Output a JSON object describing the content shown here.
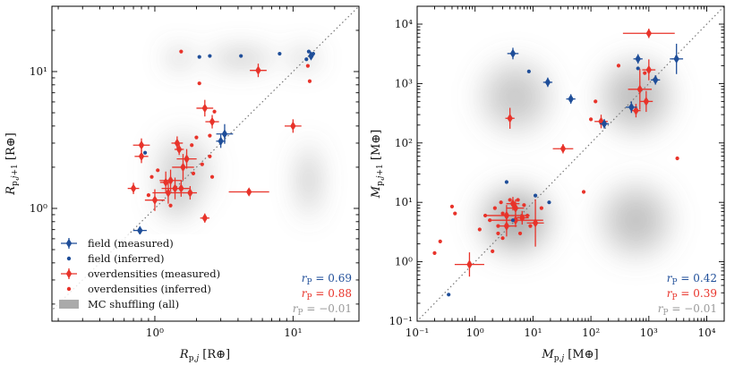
{
  "colors": {
    "field": "#1f4e99",
    "overdensity": "#e8332a",
    "mc": "#aaaaaa",
    "mc_text": "#999999",
    "diagonal": "#777777"
  },
  "chart_data": [
    {
      "type": "scatter",
      "id": "radius",
      "xscale": "log",
      "yscale": "log",
      "xlim": [
        0.18,
        30
      ],
      "ylim": [
        0.15,
        30
      ],
      "xlabel": "R_{p,j} [R⊕]",
      "ylabel": "R_{p,j+1} [R⊕]",
      "xticks": [
        {
          "v": 1,
          "label": "10⁰"
        },
        {
          "v": 10,
          "label": "10¹"
        }
      ],
      "yticks": [
        {
          "v": 1,
          "label": "10⁰"
        },
        {
          "v": 10,
          "label": "10¹"
        }
      ],
      "one_to_one_line": true,
      "mc_density_blobs": [
        {
          "x": 1.5,
          "y": 12.5,
          "sx": 1.25,
          "sy": 1.2,
          "w": 0.5
        },
        {
          "x": 4.2,
          "y": 12.5,
          "sx": 1.9,
          "sy": 1.2,
          "w": 0.45
        },
        {
          "x": 12,
          "y": 12.5,
          "sx": 1.3,
          "sy": 1.2,
          "w": 0.45
        },
        {
          "x": 1.6,
          "y": 1.9,
          "sx": 1.7,
          "sy": 2.0,
          "w": 0.35
        },
        {
          "x": 13,
          "y": 1.6,
          "sx": 1.25,
          "sy": 2.0,
          "w": 0.4
        },
        {
          "x": 1.4,
          "y": 1.1,
          "sx": 1.4,
          "sy": 1.4,
          "w": 0.3
        }
      ],
      "field_measured": [
        {
          "x": 3.2,
          "y": 3.5,
          "xerr": 1.15,
          "yerr": 1.18
        },
        {
          "x": 3.0,
          "y": 3.1,
          "xerr": 1.08,
          "yerr": 1.12
        },
        {
          "x": 0.78,
          "y": 0.69,
          "xerr": 1.12,
          "yerr": 1.02
        },
        {
          "x": 13.5,
          "y": 13.0,
          "xerr": 1.03,
          "yerr": 1.03
        }
      ],
      "field_inferred": [
        {
          "x": 2.1,
          "y": 12.8
        },
        {
          "x": 2.5,
          "y": 13.0
        },
        {
          "x": 4.2,
          "y": 13.0
        },
        {
          "x": 8.0,
          "y": 13.5
        },
        {
          "x": 13.0,
          "y": 14.0
        },
        {
          "x": 14.0,
          "y": 13.5
        },
        {
          "x": 12.5,
          "y": 12.3
        },
        {
          "x": 0.85,
          "y": 2.55
        }
      ],
      "over_measured": [
        {
          "x": 5.6,
          "y": 10.2,
          "xerr": 1.15,
          "yerr": 1.12
        },
        {
          "x": 2.3,
          "y": 5.4,
          "xerr": 1.15,
          "yerr": 1.15
        },
        {
          "x": 2.6,
          "y": 4.3,
          "xerr": 1.12,
          "yerr": 1.12
        },
        {
          "x": 10.0,
          "y": 4.0,
          "xerr": 1.15,
          "yerr": 1.12
        },
        {
          "x": 0.8,
          "y": 2.9,
          "xerr": 1.15,
          "yerr": 1.12
        },
        {
          "x": 0.8,
          "y": 2.4,
          "xerr": 1.12,
          "yerr": 1.12
        },
        {
          "x": 1.7,
          "y": 2.3,
          "xerr": 1.18,
          "yerr": 1.18
        },
        {
          "x": 1.45,
          "y": 3.0,
          "xerr": 1.1,
          "yerr": 1.12
        },
        {
          "x": 1.6,
          "y": 2.0,
          "xerr": 1.2,
          "yerr": 1.25
        },
        {
          "x": 1.3,
          "y": 1.6,
          "xerr": 1.2,
          "yerr": 1.2
        },
        {
          "x": 1.4,
          "y": 1.4,
          "xerr": 1.25,
          "yerr": 1.2
        },
        {
          "x": 1.25,
          "y": 1.3,
          "xerr": 1.3,
          "yerr": 1.2
        },
        {
          "x": 1.55,
          "y": 1.4,
          "xerr": 1.15,
          "yerr": 1.15
        },
        {
          "x": 1.0,
          "y": 1.15,
          "xerr": 1.18,
          "yerr": 1.2
        },
        {
          "x": 1.8,
          "y": 1.3,
          "xerr": 1.12,
          "yerr": 1.12
        },
        {
          "x": 1.2,
          "y": 1.55,
          "xerr": 1.1,
          "yerr": 1.2
        },
        {
          "x": 0.7,
          "y": 1.4,
          "xerr": 1.1,
          "yerr": 1.1
        },
        {
          "x": 2.3,
          "y": 0.85,
          "xerr": 1.08,
          "yerr": 1.08
        },
        {
          "x": 4.8,
          "y": 1.32,
          "xerr": 1.4,
          "yerr": 1.05
        },
        {
          "x": 1.5,
          "y": 2.7,
          "xerr": 1.08,
          "yerr": 1.1
        }
      ],
      "over_inferred": [
        {
          "x": 1.55,
          "y": 14.0
        },
        {
          "x": 2.1,
          "y": 8.2
        },
        {
          "x": 12.8,
          "y": 11.0
        },
        {
          "x": 13.2,
          "y": 8.5
        },
        {
          "x": 2.7,
          "y": 5.1
        },
        {
          "x": 2.0,
          "y": 3.3
        },
        {
          "x": 2.5,
          "y": 3.4
        },
        {
          "x": 2.5,
          "y": 2.4
        },
        {
          "x": 1.9,
          "y": 1.8
        },
        {
          "x": 0.95,
          "y": 1.7
        },
        {
          "x": 1.05,
          "y": 1.9
        },
        {
          "x": 2.6,
          "y": 1.7
        },
        {
          "x": 1.3,
          "y": 1.05
        },
        {
          "x": 0.9,
          "y": 1.25
        },
        {
          "x": 1.85,
          "y": 2.9
        },
        {
          "x": 2.2,
          "y": 2.1
        }
      ],
      "correlations": [
        {
          "label": "r",
          "sub": "P",
          "eq": " = 0.69",
          "color": "field"
        },
        {
          "label": "r",
          "sub": "P",
          "eq": " = 0.88",
          "color": "overdensity"
        },
        {
          "label": "r",
          "sub": "P",
          "eq": " = −0.01",
          "color": "mc_text"
        }
      ],
      "legend": [
        {
          "key": "field_measured",
          "label": "field (measured)"
        },
        {
          "key": "field_inferred",
          "label": "field (inferred)"
        },
        {
          "key": "over_measured",
          "label": "overdensities (measured)"
        },
        {
          "key": "over_inferred",
          "label": "overdensities (inferred)"
        },
        {
          "key": "mc",
          "label": "MC shuffling (all)"
        }
      ]
    },
    {
      "type": "scatter",
      "id": "mass",
      "xscale": "log",
      "yscale": "log",
      "xlim": [
        0.1,
        20000
      ],
      "ylim": [
        0.1,
        20000
      ],
      "xlabel": "M_{p,j} [M⊕]",
      "ylabel": "M_{p,j+1} [M⊕]",
      "xticks": [
        {
          "v": 0.1,
          "label": "10⁻¹"
        },
        {
          "v": 1,
          "label": "10⁰"
        },
        {
          "v": 10,
          "label": "10¹"
        },
        {
          "v": 100,
          "label": "10²"
        },
        {
          "v": 1000,
          "label": "10³"
        },
        {
          "v": 10000,
          "label": "10⁴"
        }
      ],
      "yticks": [
        {
          "v": 0.1,
          "label": "10⁻¹"
        },
        {
          "v": 1,
          "label": "10⁰"
        },
        {
          "v": 10,
          "label": "10¹"
        },
        {
          "v": 100,
          "label": "10²"
        },
        {
          "v": 1000,
          "label": "10³"
        },
        {
          "v": 10000,
          "label": "10⁴"
        }
      ],
      "one_to_one_line": true,
      "mc_density_blobs": [
        {
          "x": 5,
          "y": 5,
          "sx": 5,
          "sy": 4.5,
          "w": 0.6
        },
        {
          "x": 600,
          "y": 600,
          "sx": 5,
          "sy": 5,
          "w": 0.5
        },
        {
          "x": 5,
          "y": 600,
          "sx": 5,
          "sy": 5,
          "w": 0.4
        },
        {
          "x": 600,
          "y": 5,
          "sx": 5,
          "sy": 5,
          "w": 0.45
        },
        {
          "x": 5,
          "y": 5,
          "sx": 2.2,
          "sy": 2.0,
          "w": 0.35
        }
      ],
      "field_measured": [
        {
          "x": 4.5,
          "y": 3200,
          "xerr": 1.25,
          "yerr": 1.25
        },
        {
          "x": 18,
          "y": 1050,
          "xerr": 1.2,
          "yerr": 1.2
        },
        {
          "x": 45,
          "y": 550,
          "xerr": 1.2,
          "yerr": 1.2
        },
        {
          "x": 170,
          "y": 210,
          "xerr": 1.2,
          "yerr": 1.2
        },
        {
          "x": 650,
          "y": 2600,
          "xerr": 1.2,
          "yerr": 1.2
        },
        {
          "x": 500,
          "y": 400,
          "xerr": 1.25,
          "yerr": 1.25
        },
        {
          "x": 3000,
          "y": 2600,
          "xerr": 1.3,
          "yerr": 1.8
        },
        {
          "x": 1300,
          "y": 1150,
          "xerr": 1.2,
          "yerr": 1.2
        }
      ],
      "field_inferred": [
        {
          "x": 8.5,
          "y": 1600
        },
        {
          "x": 650,
          "y": 1800
        },
        {
          "x": 3.5,
          "y": 22
        },
        {
          "x": 0.35,
          "y": 0.28
        },
        {
          "x": 11,
          "y": 13
        },
        {
          "x": 19,
          "y": 10
        },
        {
          "x": 4.5,
          "y": 5
        }
      ],
      "over_measured": [
        {
          "x": 1000,
          "y": 7000,
          "xerr": 2.8,
          "yerr": 1.2
        },
        {
          "x": 4.0,
          "y": 260,
          "xerr": 1.2,
          "yerr": 1.5
        },
        {
          "x": 700,
          "y": 800,
          "xerr": 1.6,
          "yerr": 2.2
        },
        {
          "x": 1000,
          "y": 1700,
          "xerr": 1.3,
          "yerr": 1.5
        },
        {
          "x": 900,
          "y": 500,
          "xerr": 1.3,
          "yerr": 1.5
        },
        {
          "x": 150,
          "y": 230,
          "xerr": 1.3,
          "yerr": 1.3
        },
        {
          "x": 600,
          "y": 350,
          "xerr": 1.2,
          "yerr": 1.3
        },
        {
          "x": 33,
          "y": 80,
          "xerr": 1.5,
          "yerr": 1.2
        },
        {
          "x": 0.8,
          "y": 0.9,
          "xerr": 1.8,
          "yerr": 1.6
        },
        {
          "x": 11,
          "y": 4.5,
          "xerr": 1.4,
          "yerr": 2.5
        },
        {
          "x": 5,
          "y": 5,
          "xerr": 3.0,
          "yerr": 1.3
        },
        {
          "x": 3.5,
          "y": 6,
          "xerr": 2.5,
          "yerr": 1.5
        },
        {
          "x": 5,
          "y": 8,
          "xerr": 1.4,
          "yerr": 1.4
        },
        {
          "x": 3.5,
          "y": 4,
          "xerr": 1.5,
          "yerr": 1.5
        },
        {
          "x": 4.5,
          "y": 9.5,
          "xerr": 1.3,
          "yerr": 1.3
        },
        {
          "x": 6.5,
          "y": 5.5,
          "xerr": 1.3,
          "yerr": 1.3
        }
      ],
      "over_inferred": [
        {
          "x": 3100,
          "y": 55
        },
        {
          "x": 75,
          "y": 15
        },
        {
          "x": 0.4,
          "y": 8.5
        },
        {
          "x": 0.45,
          "y": 6.5
        },
        {
          "x": 0.25,
          "y": 2.2
        },
        {
          "x": 0.2,
          "y": 1.4
        },
        {
          "x": 1.2,
          "y": 3.5
        },
        {
          "x": 1.5,
          "y": 6
        },
        {
          "x": 2.0,
          "y": 1.5
        },
        {
          "x": 2.5,
          "y": 3
        },
        {
          "x": 3,
          "y": 2.5
        },
        {
          "x": 2.2,
          "y": 8
        },
        {
          "x": 2.8,
          "y": 10
        },
        {
          "x": 6,
          "y": 3
        },
        {
          "x": 7,
          "y": 9
        },
        {
          "x": 8,
          "y": 6
        },
        {
          "x": 9,
          "y": 4
        },
        {
          "x": 4,
          "y": 11
        },
        {
          "x": 1.8,
          "y": 5
        },
        {
          "x": 3,
          "y": 6.5
        },
        {
          "x": 5.5,
          "y": 11
        },
        {
          "x": 2.5,
          "y": 4
        },
        {
          "x": 14,
          "y": 8
        },
        {
          "x": 100,
          "y": 250
        },
        {
          "x": 120,
          "y": 500
        },
        {
          "x": 300,
          "y": 2000
        },
        {
          "x": 850,
          "y": 1500
        }
      ],
      "correlations": [
        {
          "label": "r",
          "sub": "P",
          "eq": " = 0.42",
          "color": "field"
        },
        {
          "label": "r",
          "sub": "P",
          "eq": " = 0.39",
          "color": "overdensity"
        },
        {
          "label": "r",
          "sub": "P",
          "eq": " = −0.01",
          "color": "mc_text"
        }
      ]
    }
  ]
}
